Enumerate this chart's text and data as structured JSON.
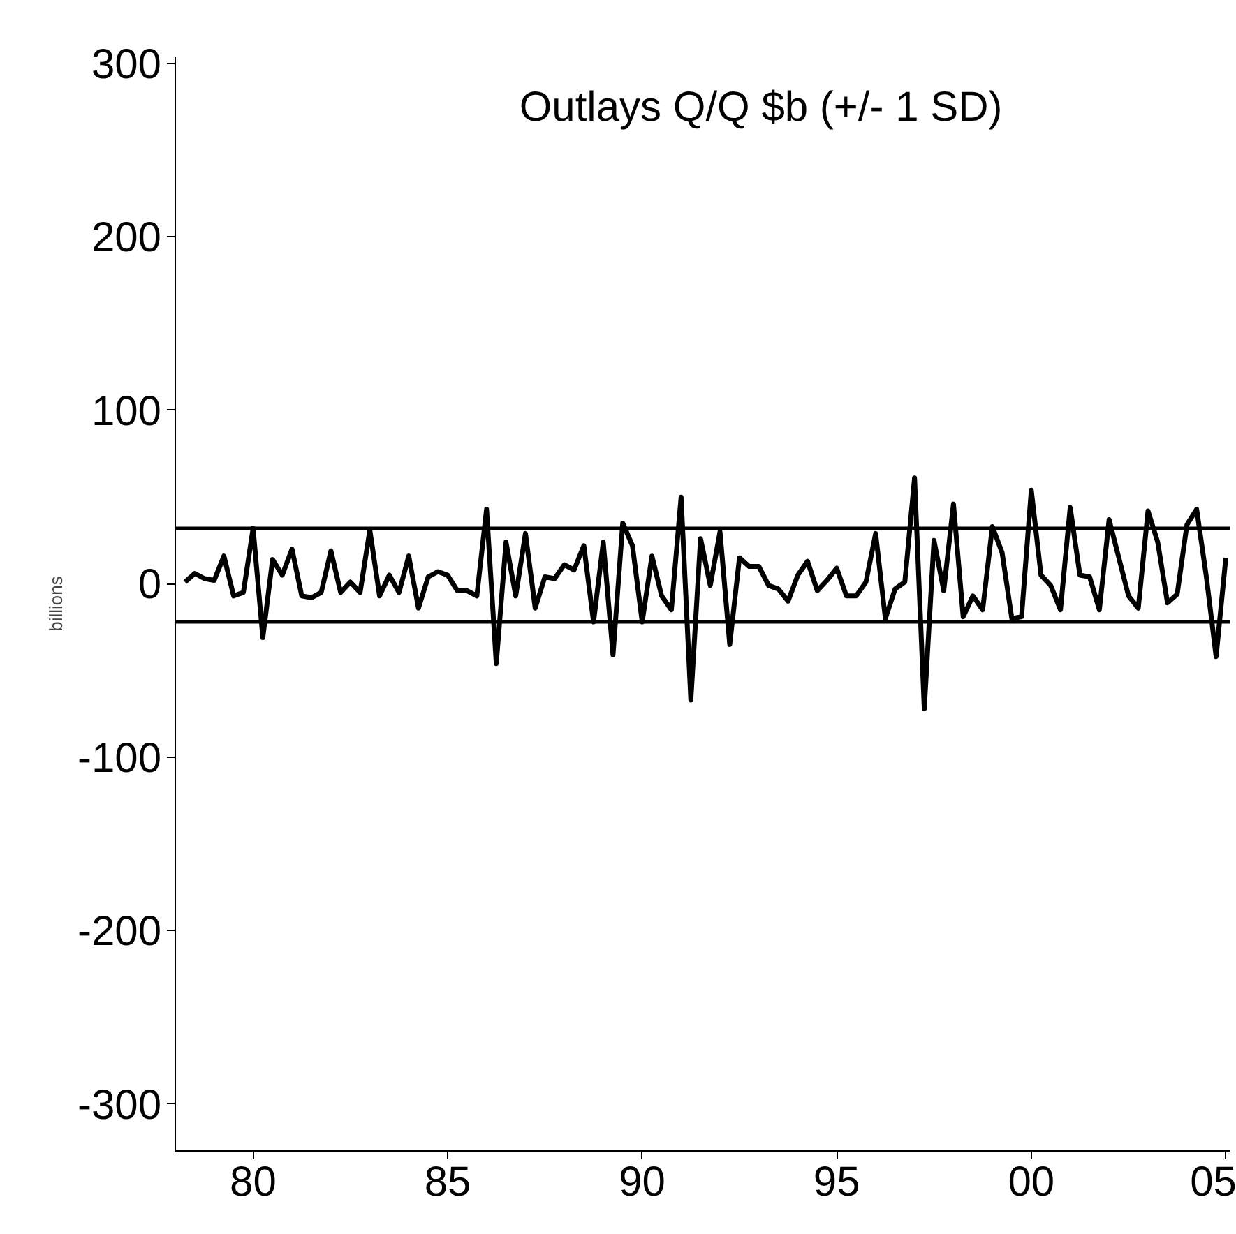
{
  "chart_data": {
    "type": "line",
    "title": "Outlays Q/Q $b (+/- 1 SD)",
    "ylabel": "billions",
    "x": [
      1978.25,
      1978.5,
      1978.75,
      1979,
      1979.25,
      1979.5,
      1979.75,
      1980,
      1980.25,
      1980.5,
      1980.75,
      1981,
      1981.25,
      1981.5,
      1981.75,
      1982,
      1982.25,
      1982.5,
      1982.75,
      1983,
      1983.25,
      1983.5,
      1983.75,
      1984,
      1984.25,
      1984.5,
      1984.75,
      1985,
      1985.25,
      1985.5,
      1985.75,
      1986,
      1986.25,
      1986.5,
      1986.75,
      1987,
      1987.25,
      1987.5,
      1987.75,
      1988,
      1988.25,
      1988.5,
      1988.75,
      1989,
      1989.25,
      1989.5,
      1989.75,
      1990,
      1990.25,
      1990.5,
      1990.75,
      1991,
      1991.25,
      1991.5,
      1991.75,
      1992,
      1992.25,
      1992.5,
      1992.75,
      1993,
      1993.25,
      1993.5,
      1993.75,
      1994,
      1994.25,
      1994.5,
      1994.75,
      1995,
      1995.25,
      1995.5,
      1995.75,
      1996,
      1996.25,
      1996.5,
      1996.75,
      1997,
      1997.25,
      1997.5,
      1997.75,
      1998,
      1998.25,
      1998.5,
      1998.75,
      1999,
      1999.25,
      1999.5,
      1999.75,
      2000,
      2000.25,
      2000.5,
      2000.75,
      2001,
      2001.25,
      2001.5,
      2001.75,
      2002,
      2002.25,
      2002.5,
      2002.75,
      2003,
      2003.25,
      2003.5,
      2003.75,
      2004,
      2004.25,
      2004.5,
      2004.75,
      2005
    ],
    "series": [
      {
        "color": "#000000",
        "values": [
          1,
          6,
          3,
          2,
          16,
          -7,
          -5,
          32,
          -31,
          14,
          5,
          20,
          -7,
          -8,
          -5,
          19,
          -5,
          1,
          -5,
          31,
          -7,
          5,
          -5,
          16,
          -14,
          4,
          7,
          5,
          -4,
          -4,
          -7,
          43,
          -46,
          24,
          -7,
          29,
          -14,
          4,
          3,
          11,
          8,
          22,
          -22,
          24,
          -41,
          35,
          22,
          -22,
          16,
          -7,
          -15,
          50,
          -67,
          26,
          -1,
          30,
          -35,
          15,
          10,
          10,
          -1,
          -3,
          -10,
          5,
          13,
          -4,
          2,
          9,
          -7,
          -7,
          1,
          29,
          -20,
          -3,
          1,
          61,
          -72,
          25,
          -4,
          46,
          -19,
          -7,
          -15,
          33,
          18,
          -20,
          -19,
          54,
          5,
          -1,
          -15,
          44,
          5,
          4,
          -15,
          37,
          15,
          -7,
          -14,
          42,
          24,
          -11,
          -6,
          34,
          43,
          4,
          -42,
          15
        ]
      }
    ],
    "xlim": [
      1978.0,
      2005.1
    ],
    "ylim": [
      -327,
      304
    ],
    "xticks": [
      {
        "value": 1980,
        "label": "80"
      },
      {
        "value": 1985,
        "label": "85"
      },
      {
        "value": 1990,
        "label": "90"
      },
      {
        "value": 1995,
        "label": "95"
      },
      {
        "value": 2000,
        "label": "00"
      },
      {
        "value": 2005,
        "label": "05"
      }
    ],
    "yticks": [
      -300,
      -200,
      -100,
      0,
      100,
      200,
      300
    ],
    "ref_lines": [
      {
        "axis": "y",
        "value": 32,
        "label": null,
        "color": "#000000"
      },
      {
        "axis": "y",
        "value": -22,
        "label": null,
        "color": "#000000"
      }
    ],
    "grid": false,
    "line_style": "solid"
  }
}
